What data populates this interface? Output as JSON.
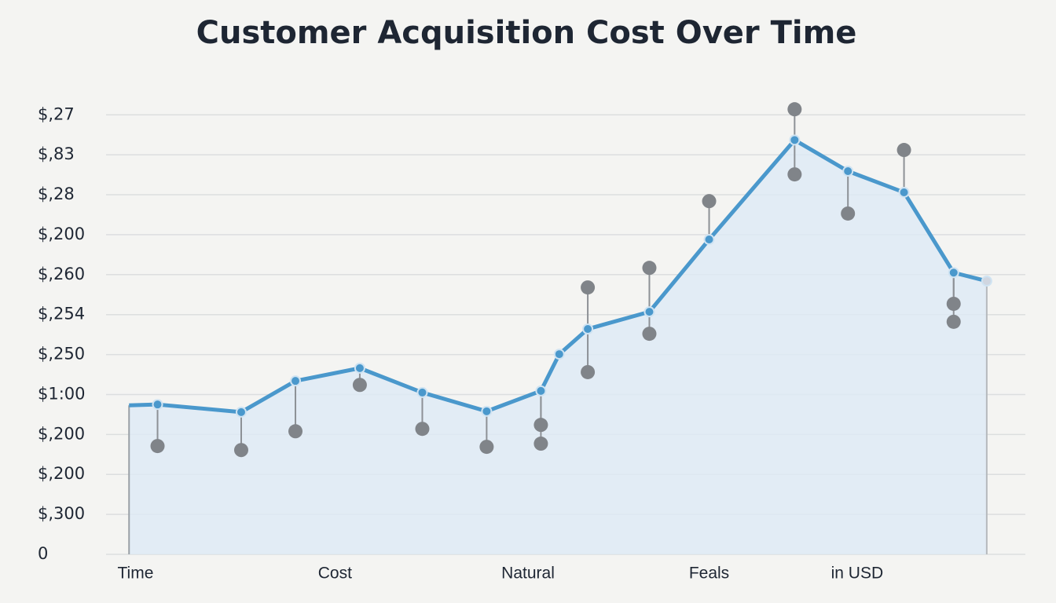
{
  "chart_data": {
    "type": "line",
    "title": "Customer Acquisition Cost Over Time",
    "xlim": [
      0,
      100
    ],
    "xticks": [
      {
        "value": 3.2,
        "label": "Time"
      },
      {
        "value": 24.9,
        "label": "Cost"
      },
      {
        "value": 45.9,
        "label": "Natural"
      },
      {
        "value": 65.6,
        "label": "Feals"
      },
      {
        "value": 81.7,
        "label": "in USD"
      }
    ],
    "ylim": [
      0,
      11.3
    ],
    "yticks": [
      0,
      {
        "value": 1,
        "label": "$,300"
      },
      {
        "value": 2,
        "label": "$,200"
      },
      {
        "value": 3,
        "label": "$,200"
      },
      {
        "value": 4,
        "label": "$1:00"
      },
      {
        "value": 5,
        "label": "$,250"
      },
      {
        "value": 6,
        "label": "$,254"
      },
      {
        "value": 7,
        "label": "$,260"
      },
      {
        "value": 8,
        "label": "$,200"
      },
      {
        "value": 9,
        "label": "$,28"
      },
      {
        "value": 10,
        "label": "$,83"
      },
      {
        "value": 11,
        "label": "$,27"
      }
    ],
    "grid": true,
    "series": [
      {
        "color": "#4a98cc",
        "x": [
          2.5,
          5.6,
          14.7,
          20.6,
          27.6,
          34.4,
          41.4,
          47.3,
          49.3,
          52.4,
          59.1,
          65.6,
          74.9,
          80.7,
          86.8,
          92.2,
          95.8
        ],
        "values": [
          3.73,
          3.75,
          3.56,
          4.34,
          4.66,
          4.05,
          3.58,
          4.09,
          5.01,
          5.64,
          6.07,
          7.88,
          10.37,
          9.59,
          9.06,
          7.05,
          6.84
        ]
      },
      {
        "color": "#808489",
        "x": [
          5.6,
          14.7,
          20.6,
          27.6,
          34.4,
          41.4,
          47.3,
          47.3,
          52.4,
          52.4,
          59.1,
          59.1,
          65.6,
          74.9,
          74.9,
          80.7,
          86.8,
          92.2,
          92.2
        ],
        "values": [
          2.71,
          2.61,
          3.08,
          4.24,
          3.14,
          2.69,
          3.24,
          2.77,
          6.68,
          4.56,
          7.17,
          5.52,
          8.84,
          11.14,
          9.51,
          8.53,
          10.12,
          6.27,
          5.82
        ]
      }
    ]
  }
}
